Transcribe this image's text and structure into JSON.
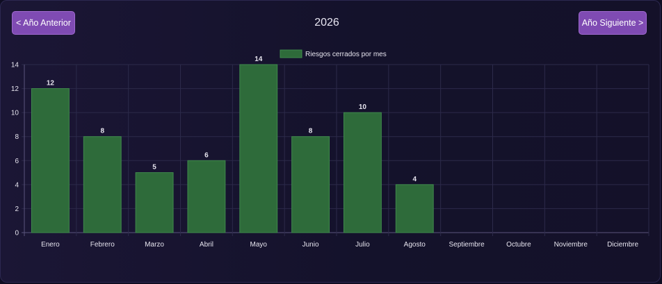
{
  "header": {
    "prev_label": "< Año Anterior",
    "year": "2026",
    "next_label": "Año Siguiente >"
  },
  "colors": {
    "bar_fill": "#2e6b3a",
    "bar_stroke": "#3f8a4c",
    "button": "#7f4bb3"
  },
  "chart_data": {
    "type": "bar",
    "categories": [
      "Enero",
      "Febrero",
      "Marzo",
      "Abril",
      "Mayo",
      "Junio",
      "Julio",
      "Agosto",
      "Septiembre",
      "Octubre",
      "Noviembre",
      "Diciembre"
    ],
    "series": [
      {
        "name": "Riesgos cerrados por mes",
        "values": [
          12,
          8,
          5,
          6,
          14,
          8,
          10,
          4,
          null,
          null,
          null,
          null
        ]
      }
    ],
    "ylim": [
      0,
      14
    ],
    "yticks": [
      0,
      2,
      4,
      6,
      8,
      10,
      12,
      14
    ],
    "grid": true,
    "legend_position": "top",
    "data_labels": true
  }
}
